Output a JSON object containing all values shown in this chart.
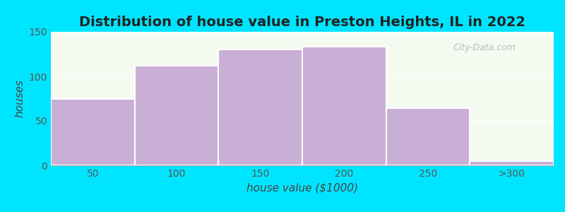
{
  "title": "Distribution of house value in Preston Heights, IL in 2022",
  "xlabel": "house value ($1000)",
  "ylabel": "houses",
  "categories": [
    "50",
    "100",
    "150",
    "200",
    "250",
    ">300"
  ],
  "values": [
    75,
    112,
    130,
    133,
    64,
    5
  ],
  "bar_color": "#c9aed6",
  "bar_edgecolor": "#ffffff",
  "ylim": [
    0,
    150
  ],
  "yticks": [
    0,
    50,
    100,
    150
  ],
  "background_outer": "#00e5ff",
  "title_fontsize": 14,
  "axis_label_fontsize": 11,
  "tick_fontsize": 10,
  "watermark_text": "City-Data.com",
  "title_color": "#222222",
  "label_color": "#444444",
  "tick_color": "#555555"
}
